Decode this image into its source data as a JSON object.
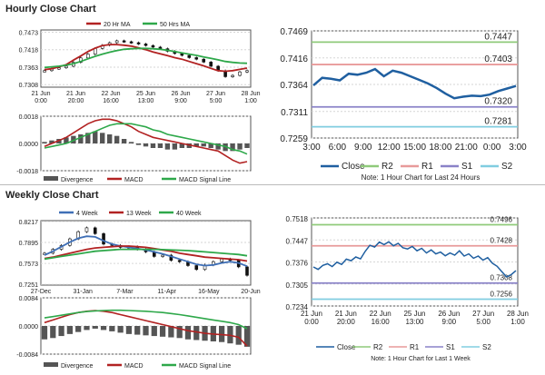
{
  "sections": {
    "hourly": {
      "title": "Hourly Close Chart"
    },
    "weekly": {
      "title": "Weekly Close Chart"
    }
  },
  "colors": {
    "close": "#1f5fa0",
    "ma_short": "#b22222",
    "ma_long": "#2ea84a",
    "divergence": "#555555",
    "r2": "#8fca7a",
    "r1": "#e89a9a",
    "s1": "#8a82c8",
    "s2": "#80cde0",
    "grid": "#d6d6d6"
  },
  "chart_data": [
    {
      "id": "hourly-price",
      "type": "line",
      "legend": [
        "20 Hr MA",
        "50 Hrs MA"
      ],
      "yticks": [
        "0.7473",
        "0.7418",
        "0.7363",
        "0.7308"
      ],
      "ylim": [
        0.73,
        0.748
      ],
      "xticks": [
        "21 Jun\n0:00",
        "21 Jun\n20:00",
        "22 Jun\n16:00",
        "25 Jun\n13:00",
        "26 Jun\n9:00",
        "27 Jun\n5:00",
        "28 Jun\n1:00"
      ],
      "candles": [
        0.7352,
        0.7358,
        0.7361,
        0.7366,
        0.7378,
        0.7392,
        0.7404,
        0.7422,
        0.7432,
        0.744,
        0.7446,
        0.7443,
        0.744,
        0.7436,
        0.7431,
        0.7426,
        0.7421,
        0.7413,
        0.7406,
        0.74,
        0.7393,
        0.7388,
        0.7379,
        0.7366,
        0.7352,
        0.7333,
        0.7337,
        0.7348,
        0.7352
      ],
      "series": [
        {
          "name": "20 Hr MA",
          "values": [
            0.7355,
            0.7358,
            0.7364,
            0.7371,
            0.7385,
            0.7398,
            0.7412,
            0.7423,
            0.7431,
            0.7434,
            0.7434,
            0.7432,
            0.7429,
            0.7424,
            0.7418,
            0.7411,
            0.7405,
            0.7399,
            0.7393,
            0.7388,
            0.7381,
            0.7374,
            0.7367,
            0.7359,
            0.7352,
            0.735,
            0.7352,
            0.7356,
            0.736
          ]
        },
        {
          "name": "50 Hrs MA",
          "values": [
            0.7362,
            0.7364,
            0.7366,
            0.7369,
            0.7374,
            0.7381,
            0.7389,
            0.7397,
            0.7404,
            0.741,
            0.7415,
            0.7419,
            0.7421,
            0.7422,
            0.7422,
            0.7421,
            0.7419,
            0.7416,
            0.7412,
            0.7408,
            0.7404,
            0.74,
            0.7395,
            0.7391,
            0.7386,
            0.7381,
            0.7378,
            0.7376,
            0.7375
          ]
        }
      ]
    },
    {
      "id": "hourly-macd",
      "type": "bar",
      "legend": [
        "Divergence",
        "MACD",
        "MACD Signal Line"
      ],
      "yticks": [
        "0.0018",
        "0.0000",
        "-0.0018"
      ],
      "ylim": [
        -0.0018,
        0.0018
      ],
      "divergence": [
        0.0001,
        0.0002,
        0.0003,
        0.0004,
        0.0005,
        0.0006,
        0.0007,
        0.0008,
        0.0007,
        0.0006,
        0.0005,
        0.0003,
        0.0001,
        -0.0001,
        -0.0002,
        -0.0003,
        -0.0003,
        -0.0004,
        -0.0004,
        -0.0003,
        -0.0003,
        -0.0002,
        -0.0002,
        -0.0003,
        -0.0004,
        -0.0005,
        -0.0005,
        -0.0004,
        -0.0003
      ],
      "series": [
        {
          "name": "MACD",
          "values": [
            -0.0002,
            0.0,
            0.0002,
            0.0004,
            0.0007,
            0.001,
            0.0013,
            0.0015,
            0.0016,
            0.0016,
            0.0015,
            0.0013,
            0.0011,
            0.0008,
            0.0006,
            0.0004,
            0.0003,
            0.0002,
            0.0001,
            0.0,
            -0.0001,
            -0.0002,
            -0.0003,
            -0.0004,
            -0.0005,
            -0.0008,
            -0.0011,
            -0.0013,
            -0.0012
          ]
        },
        {
          "name": "MACD Signal Line",
          "values": [
            -0.0003,
            -0.0002,
            -0.0001,
            0.0,
            0.0002,
            0.0004,
            0.0006,
            0.0008,
            0.001,
            0.0012,
            0.0013,
            0.0013,
            0.0013,
            0.0012,
            0.0011,
            0.0009,
            0.0008,
            0.0006,
            0.0005,
            0.0004,
            0.0003,
            0.0002,
            0.0001,
            0.0,
            -0.0001,
            -0.0002,
            -0.0004,
            -0.0005,
            -0.0007
          ]
        }
      ]
    },
    {
      "id": "hourly-levels",
      "type": "line",
      "yticks": [
        "0.7469",
        "0.7416",
        "0.7364",
        "0.7311",
        "0.7259"
      ],
      "ylim": [
        0.7259,
        0.7469
      ],
      "xticks": [
        "3:00",
        "6:00",
        "9:00",
        "12:00",
        "15:00",
        "18:00",
        "21:00",
        "0:00",
        "3:00"
      ],
      "legend": [
        "Close",
        "R2",
        "R1",
        "S1",
        "S2"
      ],
      "levels": [
        {
          "name": "R2",
          "value": 0.7447,
          "label": "0.7447"
        },
        {
          "name": "R1",
          "value": 0.7403,
          "label": "0.7403"
        },
        {
          "name": "S1",
          "value": 0.732,
          "label": "0.7320"
        },
        {
          "name": "S2",
          "value": 0.7281,
          "label": "0.7281"
        }
      ],
      "close": [
        0.7362,
        0.7377,
        0.7375,
        0.7372,
        0.7385,
        0.7383,
        0.7387,
        0.7394,
        0.738,
        0.7391,
        0.7387,
        0.738,
        0.7373,
        0.7366,
        0.7357,
        0.7346,
        0.7337,
        0.734,
        0.7342,
        0.7341,
        0.7344,
        0.7351,
        0.7356,
        0.7361
      ],
      "note": "Note: 1 Hour Chart for Last 24 Hours"
    },
    {
      "id": "weekly-price",
      "type": "line",
      "legend": [
        "4 Week",
        "13 Week",
        "40 Week"
      ],
      "yticks": [
        "0.8217",
        "0.7895",
        "0.7573",
        "0.7251"
      ],
      "ylim": [
        0.724,
        0.823
      ],
      "xticks": [
        "27-Dec",
        "31-Jan",
        "7-Mar",
        "11-Apr",
        "16-May",
        "20-Jun"
      ],
      "candles": [
        0.773,
        0.779,
        0.785,
        0.795,
        0.806,
        0.812,
        0.803,
        0.787,
        0.785,
        0.782,
        0.783,
        0.779,
        0.775,
        0.768,
        0.77,
        0.762,
        0.76,
        0.754,
        0.748,
        0.755,
        0.76,
        0.764,
        0.762,
        0.752,
        0.739
      ],
      "series": [
        {
          "name": "4 Week",
          "values": [
            0.77,
            0.776,
            0.783,
            0.79,
            0.796,
            0.799,
            0.798,
            0.792,
            0.787,
            0.784,
            0.782,
            0.78,
            0.778,
            0.775,
            0.772,
            0.768,
            0.764,
            0.76,
            0.756,
            0.754,
            0.755,
            0.758,
            0.76,
            0.758,
            0.753
          ]
        },
        {
          "name": "13 Week",
          "values": [
            0.765,
            0.767,
            0.77,
            0.773,
            0.776,
            0.779,
            0.781,
            0.782,
            0.783,
            0.784,
            0.784,
            0.783,
            0.782,
            0.78,
            0.778,
            0.776,
            0.773,
            0.771,
            0.769,
            0.767,
            0.766,
            0.765,
            0.764,
            0.763,
            0.761
          ]
        },
        {
          "name": "40 Week",
          "values": [
            0.764,
            0.766,
            0.768,
            0.77,
            0.772,
            0.774,
            0.776,
            0.777,
            0.778,
            0.779,
            0.779,
            0.779,
            0.779,
            0.779,
            0.7785,
            0.778,
            0.7775,
            0.777,
            0.776,
            0.775,
            0.774,
            0.773,
            0.772,
            0.771,
            0.769
          ]
        }
      ]
    },
    {
      "id": "weekly-macd",
      "type": "bar",
      "legend": [
        "Divergence",
        "MACD",
        "MACD Signal Line"
      ],
      "yticks": [
        "0.0084",
        "0.0000",
        "-0.0084"
      ],
      "ylim": [
        -0.0084,
        0.0084
      ],
      "divergence": [
        -0.004,
        -0.0036,
        -0.003,
        -0.0024,
        -0.0018,
        -0.0012,
        -0.0008,
        -0.0012,
        -0.0016,
        -0.002,
        -0.0024,
        -0.0026,
        -0.0028,
        -0.003,
        -0.0032,
        -0.0034,
        -0.0036,
        -0.004,
        -0.0042,
        -0.0044,
        -0.0046,
        -0.0048,
        -0.0052,
        -0.0056,
        -0.0062
      ],
      "series": [
        {
          "name": "MACD",
          "values": [
            0.001,
            0.0018,
            0.0026,
            0.0034,
            0.004,
            0.0044,
            0.0046,
            0.0044,
            0.004,
            0.0034,
            0.0028,
            0.0022,
            0.0016,
            0.001,
            0.0004,
            -0.0002,
            -0.0008,
            -0.0014,
            -0.0018,
            -0.0022,
            -0.0024,
            -0.0026,
            -0.0028,
            -0.0034,
            -0.006
          ]
        },
        {
          "name": "MACD Signal Line",
          "values": [
            0.0024,
            0.0028,
            0.0032,
            0.0036,
            0.004,
            0.0043,
            0.0045,
            0.0046,
            0.0047,
            0.0047,
            0.0046,
            0.0045,
            0.0044,
            0.0042,
            0.004,
            0.0037,
            0.0034,
            0.003,
            0.0026,
            0.0022,
            0.0018,
            0.0014,
            0.001,
            0.0004,
            -0.0008
          ]
        }
      ]
    },
    {
      "id": "weekly-levels",
      "type": "line",
      "yticks": [
        "0.7518",
        "0.7447",
        "0.7376",
        "0.7305",
        "0.7234"
      ],
      "ylim": [
        0.7234,
        0.7518
      ],
      "xticks": [
        "21 Jun\n0:00",
        "21 Jun\n20:00",
        "22 Jun\n16:00",
        "25 Jun\n13:00",
        "26 Jun\n9:00",
        "27 Jun\n5:00",
        "28 Jun\n1:00"
      ],
      "legend": [
        "Close",
        "R2",
        "R1",
        "S1",
        "S2"
      ],
      "levels": [
        {
          "name": "R2",
          "value": 0.7496,
          "label": "0.7496"
        },
        {
          "name": "R1",
          "value": 0.7428,
          "label": "0.7428"
        },
        {
          "name": "S1",
          "value": 0.7308,
          "label": "0.7308"
        },
        {
          "name": "S2",
          "value": 0.7256,
          "label": "0.7256"
        }
      ],
      "close": [
        0.736,
        0.7352,
        0.7365,
        0.737,
        0.7361,
        0.7375,
        0.7368,
        0.7385,
        0.738,
        0.7392,
        0.7386,
        0.741,
        0.743,
        0.7424,
        0.744,
        0.7432,
        0.7441,
        0.7428,
        0.7436,
        0.7422,
        0.7418,
        0.7426,
        0.7412,
        0.742,
        0.7405,
        0.7415,
        0.7402,
        0.7408,
        0.7396,
        0.7405,
        0.7398,
        0.7412,
        0.7395,
        0.7402,
        0.7388,
        0.7395,
        0.7382,
        0.739,
        0.7372,
        0.7362,
        0.7345,
        0.7328,
        0.7335,
        0.7348
      ],
      "note": "Note: 1 Hour Chart for Last 1 Week"
    }
  ]
}
